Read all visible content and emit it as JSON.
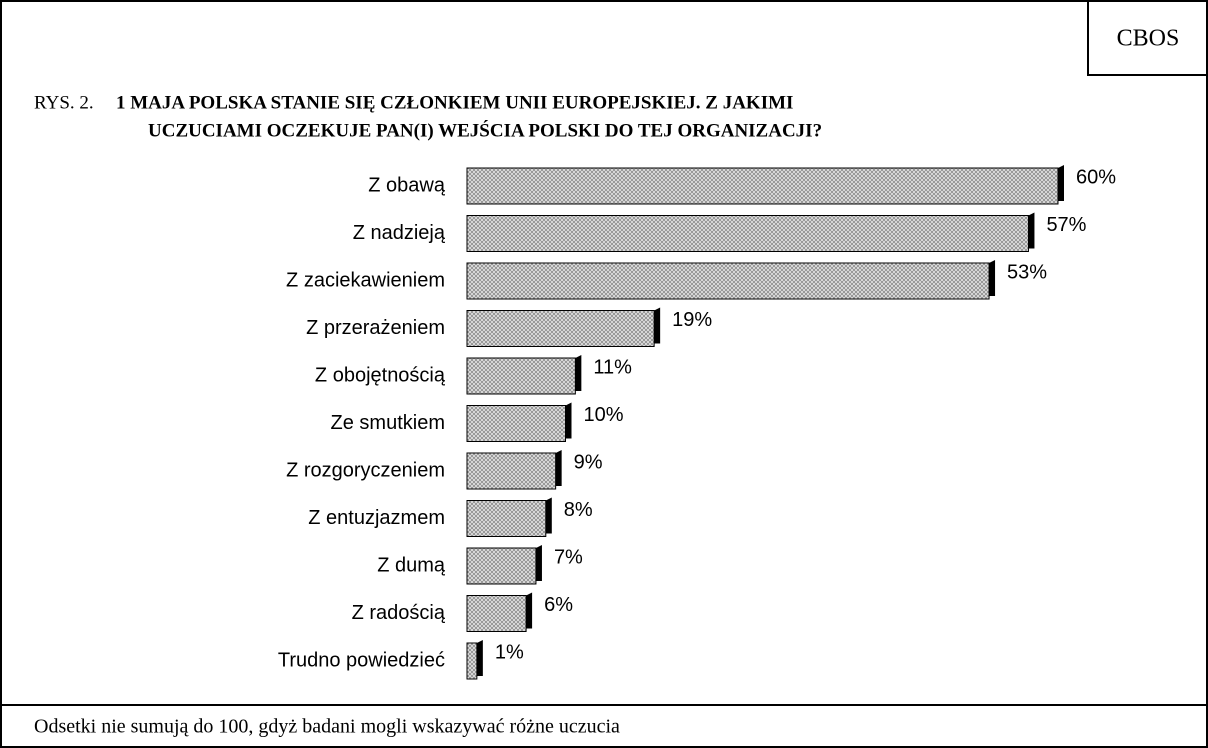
{
  "chart_data": {
    "type": "bar",
    "orientation": "horizontal",
    "source": "CBOS",
    "figure_label": "RYS. 2.",
    "title": [
      "1 MAJA POLSKA STANIE SIĘ CZŁONKIEM UNII EUROPEJSKIEJ. Z JAKIMI",
      "UCZUCIAMI OCZEKUJE PAN(I) WEJŚCIA POLSKI DO TEJ ORGANIZACJI?"
    ],
    "categories": [
      "Z obawą",
      "Z nadzieją",
      "Z zaciekawieniem",
      "Z przerażeniem",
      "Z obojętnością",
      "Ze smutkiem",
      "Z rozgoryczeniem",
      "Z entuzjazmem",
      "Z dumą",
      "Z radością",
      "Trudno powiedzieć"
    ],
    "values": [
      60,
      57,
      53,
      19,
      11,
      10,
      9,
      8,
      7,
      6,
      1
    ],
    "value_labels": [
      "60%",
      "57%",
      "53%",
      "19%",
      "11%",
      "10%",
      "9%",
      "8%",
      "7%",
      "6%",
      "1%"
    ],
    "color": "#c8c8c8",
    "note": "Odsetki nie sumują do 100, gdyż badani mogli wskazywać różne uczucia"
  }
}
